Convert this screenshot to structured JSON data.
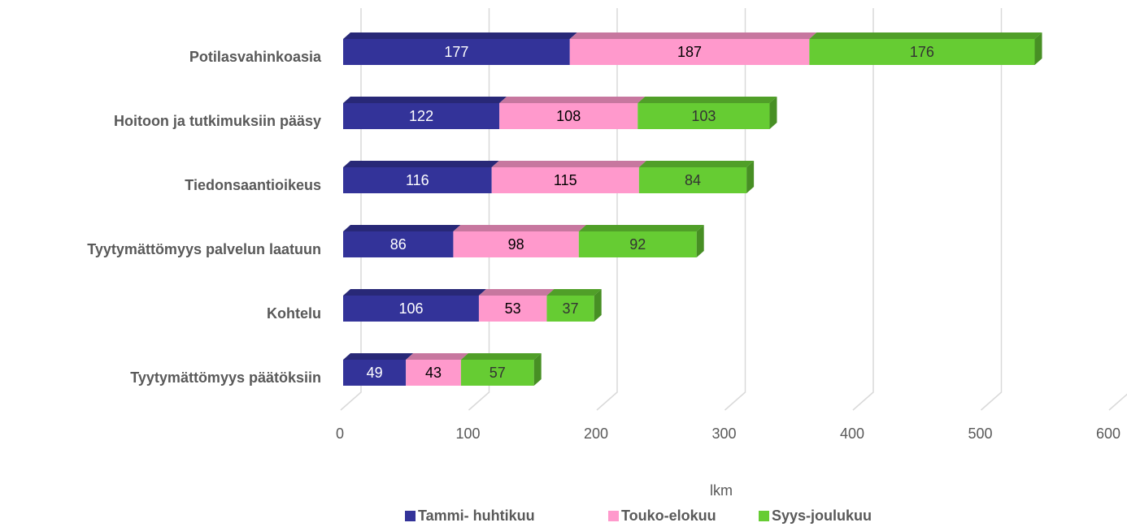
{
  "chart_data": {
    "type": "bar",
    "orientation": "horizontal",
    "stacked": true,
    "three_d": true,
    "x_label": "lkm",
    "categories": [
      "Potilasvahinkoasia",
      "Hoitoon ja tutkimuksiin pääsy",
      "Tiedonsaantioikeus",
      "Tyytymättömyys palvelun laatuun",
      "Kohtelu",
      "Tyytymättömyys päätöksiin"
    ],
    "series": [
      {
        "name": "Tammi- huhtikuu",
        "color": "#333399",
        "values": [
          177,
          122,
          116,
          86,
          106,
          49
        ]
      },
      {
        "name": "Touko-elokuu",
        "color": "#ff99cc",
        "values": [
          187,
          108,
          115,
          98,
          53,
          43
        ]
      },
      {
        "name": "Syys-joulukuu",
        "color": "#66cc33",
        "values": [
          176,
          103,
          84,
          92,
          37,
          57
        ]
      }
    ],
    "xlim": [
      0,
      600
    ],
    "xticks": [
      0,
      100,
      200,
      300,
      400,
      500,
      600
    ],
    "grid": true,
    "legend": "bottom"
  }
}
